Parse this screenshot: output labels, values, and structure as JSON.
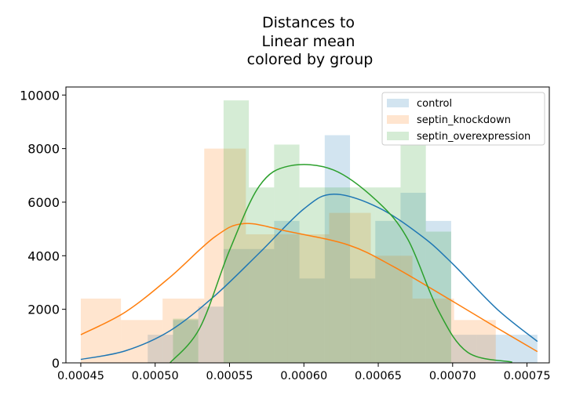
{
  "chart_data": {
    "type": "histogram",
    "title": [
      "Distances to",
      "Linear mean",
      "colored by group"
    ],
    "xlabel": "",
    "ylabel": "",
    "xlim": [
      0.00044,
      0.000765
    ],
    "ylim": [
      0,
      10300
    ],
    "xticks": [
      0.00045,
      0.0005,
      0.00055,
      0.0006,
      0.00065,
      0.0007,
      0.00075
    ],
    "xtick_labels": [
      "0.00045",
      "0.00050",
      "0.00055",
      "0.00060",
      "0.00065",
      "0.00070",
      "0.00075"
    ],
    "yticks": [
      0,
      2000,
      4000,
      6000,
      8000,
      10000
    ],
    "ytick_labels": [
      "0",
      "2000",
      "4000",
      "6000",
      "8000",
      "10000"
    ],
    "grid": false,
    "legend_position": "top-right",
    "series": [
      {
        "name": "control",
        "color": "#1f77b4",
        "bar_opacity": 0.2,
        "bins": [
          {
            "x0": 0.000495,
            "x1": 0.000512,
            "y": 1050
          },
          {
            "x0": 0.000512,
            "x1": 0.000529,
            "y": 1600
          },
          {
            "x0": 0.000529,
            "x1": 0.000546,
            "y": 2100
          },
          {
            "x0": 0.000546,
            "x1": 0.000563,
            "y": 4250
          },
          {
            "x0": 0.000563,
            "x1": 0.00058,
            "y": 4250
          },
          {
            "x0": 0.00058,
            "x1": 0.000597,
            "y": 5300
          },
          {
            "x0": 0.000597,
            "x1": 0.000614,
            "y": 3150
          },
          {
            "x0": 0.000614,
            "x1": 0.000631,
            "y": 8500
          },
          {
            "x0": 0.000631,
            "x1": 0.000648,
            "y": 3150
          },
          {
            "x0": 0.000648,
            "x1": 0.000665,
            "y": 5300
          },
          {
            "x0": 0.000665,
            "x1": 0.000682,
            "y": 6350
          },
          {
            "x0": 0.000682,
            "x1": 0.000699,
            "y": 5300
          },
          {
            "x0": 0.000699,
            "x1": 0.000716,
            "y": 1050
          },
          {
            "x0": 0.000716,
            "x1": 0.000733,
            "y": 1050
          },
          {
            "x0": 0.000733,
            "x1": 0.000757,
            "y": 1050
          }
        ],
        "kde": [
          [
            0.00045,
            130
          ],
          [
            0.00048,
            450
          ],
          [
            0.00051,
            1200
          ],
          [
            0.00054,
            2500
          ],
          [
            0.00057,
            4100
          ],
          [
            0.0006,
            5750
          ],
          [
            0.00062,
            6300
          ],
          [
            0.00065,
            5800
          ],
          [
            0.00068,
            4700
          ],
          [
            0.0007,
            3700
          ],
          [
            0.00073,
            2000
          ],
          [
            0.000757,
            800
          ]
        ]
      },
      {
        "name": "septin_knockdown",
        "color": "#ff7f0e",
        "bar_opacity": 0.2,
        "bins": [
          {
            "x0": 0.00045,
            "x1": 0.000477,
            "y": 2400
          },
          {
            "x0": 0.000477,
            "x1": 0.000505,
            "y": 1600
          },
          {
            "x0": 0.000505,
            "x1": 0.000533,
            "y": 2400
          },
          {
            "x0": 0.000533,
            "x1": 0.000561,
            "y": 8000
          },
          {
            "x0": 0.000561,
            "x1": 0.000589,
            "y": 4800
          },
          {
            "x0": 0.000589,
            "x1": 0.000617,
            "y": 4800
          },
          {
            "x0": 0.000617,
            "x1": 0.000645,
            "y": 5600
          },
          {
            "x0": 0.000645,
            "x1": 0.000673,
            "y": 4000
          },
          {
            "x0": 0.000673,
            "x1": 0.000701,
            "y": 2400
          },
          {
            "x0": 0.000701,
            "x1": 0.000729,
            "y": 1600
          },
          {
            "x0": 0.000729,
            "x1": 0.000757,
            "y": 0
          }
        ],
        "kde": [
          [
            0.00045,
            1050
          ],
          [
            0.00048,
            1900
          ],
          [
            0.00051,
            3200
          ],
          [
            0.00054,
            4700
          ],
          [
            0.00056,
            5200
          ],
          [
            0.00059,
            4900
          ],
          [
            0.00063,
            4400
          ],
          [
            0.00066,
            3600
          ],
          [
            0.0007,
            2300
          ],
          [
            0.00073,
            1300
          ],
          [
            0.000757,
            420
          ]
        ]
      },
      {
        "name": "septin_overexpression",
        "color": "#2ca02c",
        "bar_opacity": 0.2,
        "bins": [
          {
            "x0": 0.000512,
            "x1": 0.000529,
            "y": 1650
          },
          {
            "x0": 0.000529,
            "x1": 0.000546,
            "y": 0
          },
          {
            "x0": 0.000546,
            "x1": 0.000563,
            "y": 9800
          },
          {
            "x0": 0.000563,
            "x1": 0.00058,
            "y": 6550
          },
          {
            "x0": 0.00058,
            "x1": 0.000597,
            "y": 8150
          },
          {
            "x0": 0.000597,
            "x1": 0.000614,
            "y": 6550
          },
          {
            "x0": 0.000614,
            "x1": 0.000631,
            "y": 6550
          },
          {
            "x0": 0.000631,
            "x1": 0.000648,
            "y": 6550
          },
          {
            "x0": 0.000648,
            "x1": 0.000665,
            "y": 6550
          },
          {
            "x0": 0.000665,
            "x1": 0.000682,
            "y": 8150
          },
          {
            "x0": 0.000682,
            "x1": 0.000699,
            "y": 4900
          }
        ],
        "kde": [
          [
            0.00051,
            0
          ],
          [
            0.00053,
            1300
          ],
          [
            0.00055,
            4200
          ],
          [
            0.00057,
            6600
          ],
          [
            0.00059,
            7350
          ],
          [
            0.00062,
            7200
          ],
          [
            0.00065,
            6000
          ],
          [
            0.00067,
            4600
          ],
          [
            0.00069,
            2000
          ],
          [
            0.00071,
            400
          ],
          [
            0.00074,
            30
          ]
        ]
      }
    ]
  }
}
